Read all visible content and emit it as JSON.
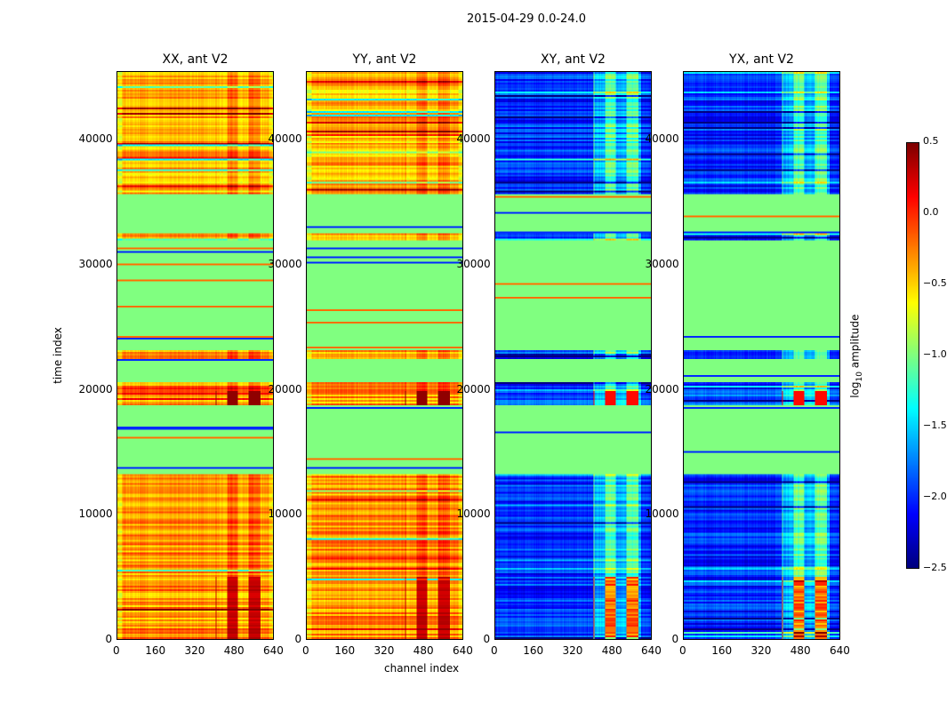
{
  "chart_data": {
    "type": "heatmap",
    "title": "2015-04-29 0.0-24.0",
    "xlabel": "channel index",
    "ylabel": "time index",
    "xlim": [
      0,
      640
    ],
    "ylim": [
      0,
      45500
    ],
    "xticks": [
      "0",
      "160",
      "320",
      "480",
      "640"
    ],
    "yticks": [
      "0",
      "10000",
      "20000",
      "30000",
      "40000"
    ],
    "panels": [
      {
        "title": "XX, ant V2",
        "kind": "parallel"
      },
      {
        "title": "YY, ant V2",
        "kind": "parallel"
      },
      {
        "title": "XY, ant V2",
        "kind": "cross"
      },
      {
        "title": "YX, ant V2",
        "kind": "cross"
      }
    ],
    "colorbar": {
      "label": "log",
      "label_sub": "10",
      "label_rest": " amplitude",
      "range": [
        -2.5,
        0.5
      ],
      "ticks": [
        "0.5",
        "0.0",
        "−0.5",
        "−1.0",
        "−1.5",
        "−2.0",
        "−2.5"
      ],
      "colormap": "jet"
    },
    "bands": [
      {
        "t0": 0,
        "t1": 13300,
        "state": "data",
        "parallel": -0.3,
        "cross": -2.0
      },
      {
        "t0": 13300,
        "t1": 18800,
        "state": "flagged",
        "value": -1.0
      },
      {
        "t0": 18800,
        "t1": 20000,
        "state": "data-hot",
        "parallel": -0.3,
        "cross": -1.9
      },
      {
        "t0": 20000,
        "t1": 20700,
        "state": "data",
        "parallel": -0.3,
        "cross": -2.0
      },
      {
        "t0": 20700,
        "t1": 22500,
        "state": "flagged",
        "value": -1.0
      },
      {
        "t0": 22500,
        "t1": 23300,
        "state": "data",
        "parallel": -0.3,
        "cross": -2.2
      },
      {
        "t0": 23300,
        "t1": 32000,
        "state": "flagged",
        "value": -1.0
      },
      {
        "t0": 32000,
        "t1": 32600,
        "state": "data",
        "parallel": -0.3,
        "cross": -2.0
      },
      {
        "t0": 32600,
        "t1": 35800,
        "state": "flagged",
        "value": -1.0
      },
      {
        "t0": 35800,
        "t1": 45500,
        "state": "data",
        "parallel": -0.4,
        "cross": -2.0
      }
    ]
  }
}
